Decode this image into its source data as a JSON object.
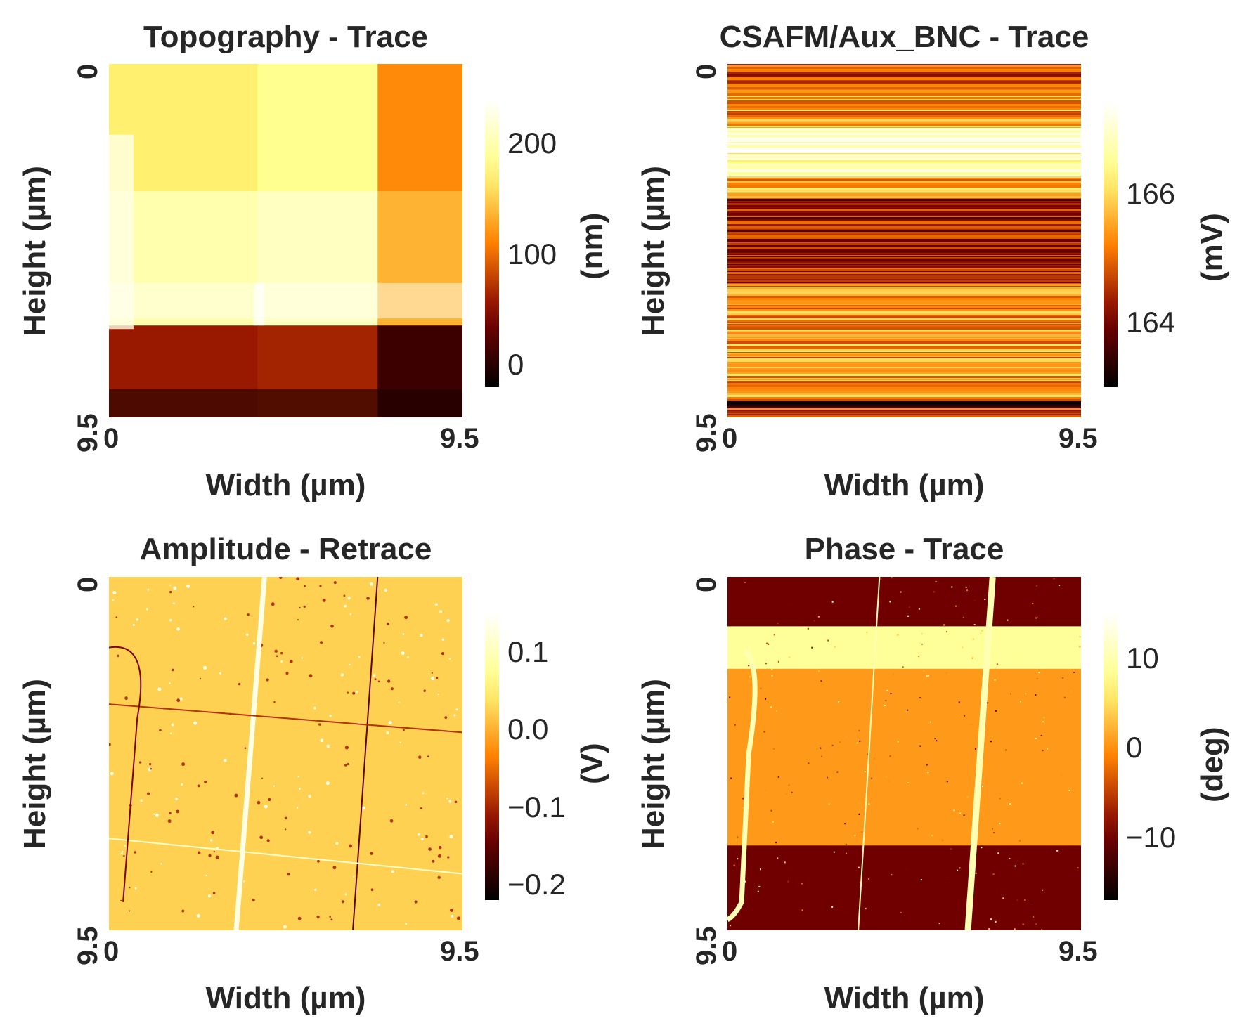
{
  "chart_data": [
    {
      "type": "heatmap",
      "title": "Topography - Trace",
      "xlabel": "Width (µm)",
      "ylabel": "Height (µm)",
      "xticks": [
        "0",
        "9.5"
      ],
      "yticks": [
        "0",
        "9.5"
      ],
      "xlim": [
        0,
        9.5
      ],
      "ylim": [
        0,
        9.5
      ],
      "colormap": "afmhot",
      "colorbar": {
        "label": "(nm)",
        "range": [
          -20,
          240
        ],
        "ticks": [
          0,
          100,
          200
        ],
        "tick_labels": [
          "0",
          "100",
          "200"
        ]
      }
    },
    {
      "type": "heatmap",
      "title": "CSAFM/Aux_BNC - Trace",
      "xlabel": "Width (µm)",
      "ylabel": "Height (µm)",
      "xticks": [
        "0",
        "9.5"
      ],
      "yticks": [
        "0",
        "9.5"
      ],
      "xlim": [
        0,
        9.5
      ],
      "ylim": [
        0,
        9.5
      ],
      "colormap": "afmhot",
      "colorbar": {
        "label": "(mV)",
        "range": [
          163.0,
          167.4
        ],
        "ticks": [
          164,
          166
        ],
        "tick_labels": [
          "164",
          "166"
        ]
      }
    },
    {
      "type": "heatmap",
      "title": "Amplitude - Retrace",
      "xlabel": "Width (µm)",
      "ylabel": "Height (µm)",
      "xticks": [
        "0",
        "9.5"
      ],
      "yticks": [
        "0",
        "9.5"
      ],
      "xlim": [
        0,
        9.5
      ],
      "ylim": [
        0,
        9.5
      ],
      "colormap": "afmhot",
      "colorbar": {
        "label": "(V)",
        "range": [
          -0.22,
          0.15
        ],
        "ticks": [
          0.1,
          0.0,
          -0.1,
          -0.2
        ],
        "tick_labels": [
          "0.1",
          "0.0",
          "−0.1",
          "−0.2"
        ]
      }
    },
    {
      "type": "heatmap",
      "title": "Phase - Trace",
      "xlabel": "Width (µm)",
      "ylabel": "Height (µm)",
      "xticks": [
        "0",
        "9.5"
      ],
      "yticks": [
        "0",
        "9.5"
      ],
      "xlim": [
        0,
        9.5
      ],
      "ylim": [
        0,
        9.5
      ],
      "colormap": "afmhot",
      "colorbar": {
        "label": "(deg)",
        "range": [
          -17,
          15
        ],
        "ticks": [
          10,
          0,
          -10
        ],
        "tick_labels": [
          "10",
          "0",
          "−10"
        ]
      }
    }
  ]
}
